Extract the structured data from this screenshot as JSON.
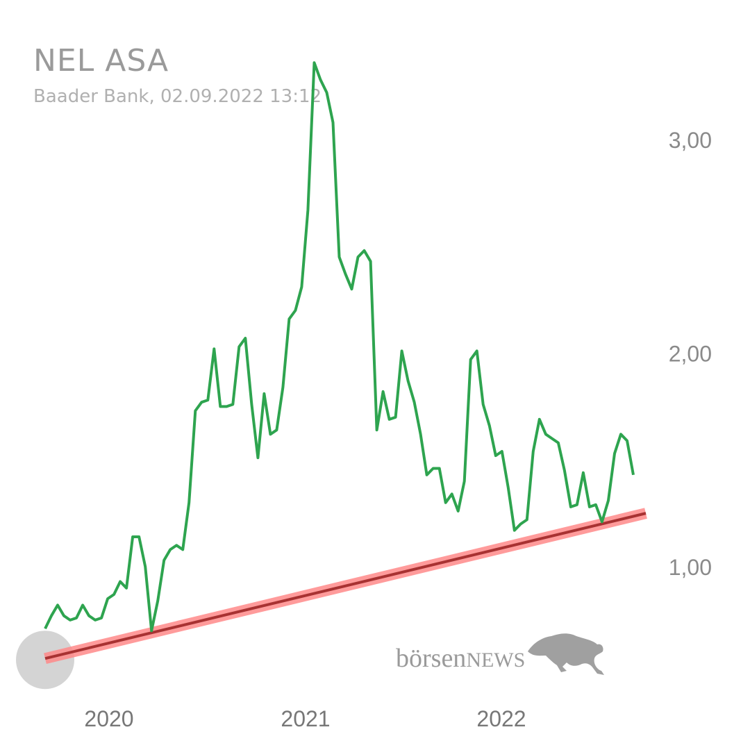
{
  "header": {
    "title": "NEL ASA",
    "subtitle": "Baader Bank, 02.09.2022 13:12"
  },
  "watermark": {
    "text_lower": "börsen",
    "text_upper": "NEWS",
    "icon": "bull-icon"
  },
  "colors": {
    "price_line": "#2ea44f",
    "trend_line": "#a83232",
    "trend_band": "#ff8a8a",
    "marker": "#cfcfcf"
  },
  "chart_data": {
    "type": "line",
    "x_ticks": [
      "2020",
      "2021",
      "2022"
    ],
    "y_ticks": [
      "1,00",
      "2,00",
      "3,00"
    ],
    "ylim": [
      0.55,
      3.4
    ],
    "grid": false,
    "series": [
      {
        "values": [
          0.71,
          0.77,
          0.82,
          0.77,
          0.75,
          0.76,
          0.82,
          0.77,
          0.75,
          0.76,
          0.85,
          0.87,
          0.93,
          0.9,
          1.14,
          1.14,
          1.0,
          0.7,
          0.84,
          1.03,
          1.08,
          1.1,
          1.08,
          1.3,
          1.73,
          1.77,
          1.78,
          2.02,
          1.75,
          1.75,
          1.76,
          2.03,
          2.07,
          1.76,
          1.51,
          1.81,
          1.62,
          1.64,
          1.84,
          2.16,
          2.2,
          2.31,
          2.67,
          3.36,
          3.28,
          3.22,
          3.08,
          2.45,
          2.37,
          2.3,
          2.45,
          2.48,
          2.43,
          1.64,
          1.82,
          1.69,
          1.7,
          2.01,
          1.87,
          1.77,
          1.62,
          1.43,
          1.46,
          1.46,
          1.3,
          1.34,
          1.26,
          1.4,
          1.97,
          2.01,
          1.76,
          1.66,
          1.52,
          1.54,
          1.37,
          1.17,
          1.2,
          1.22,
          1.54,
          1.69,
          1.62,
          1.6,
          1.58,
          1.45,
          1.28,
          1.29,
          1.44,
          1.28,
          1.29,
          1.21,
          1.31,
          1.53,
          1.62,
          1.59,
          1.43
        ]
      }
    ],
    "trendline": {
      "start": 0.57,
      "end": 1.25
    }
  }
}
